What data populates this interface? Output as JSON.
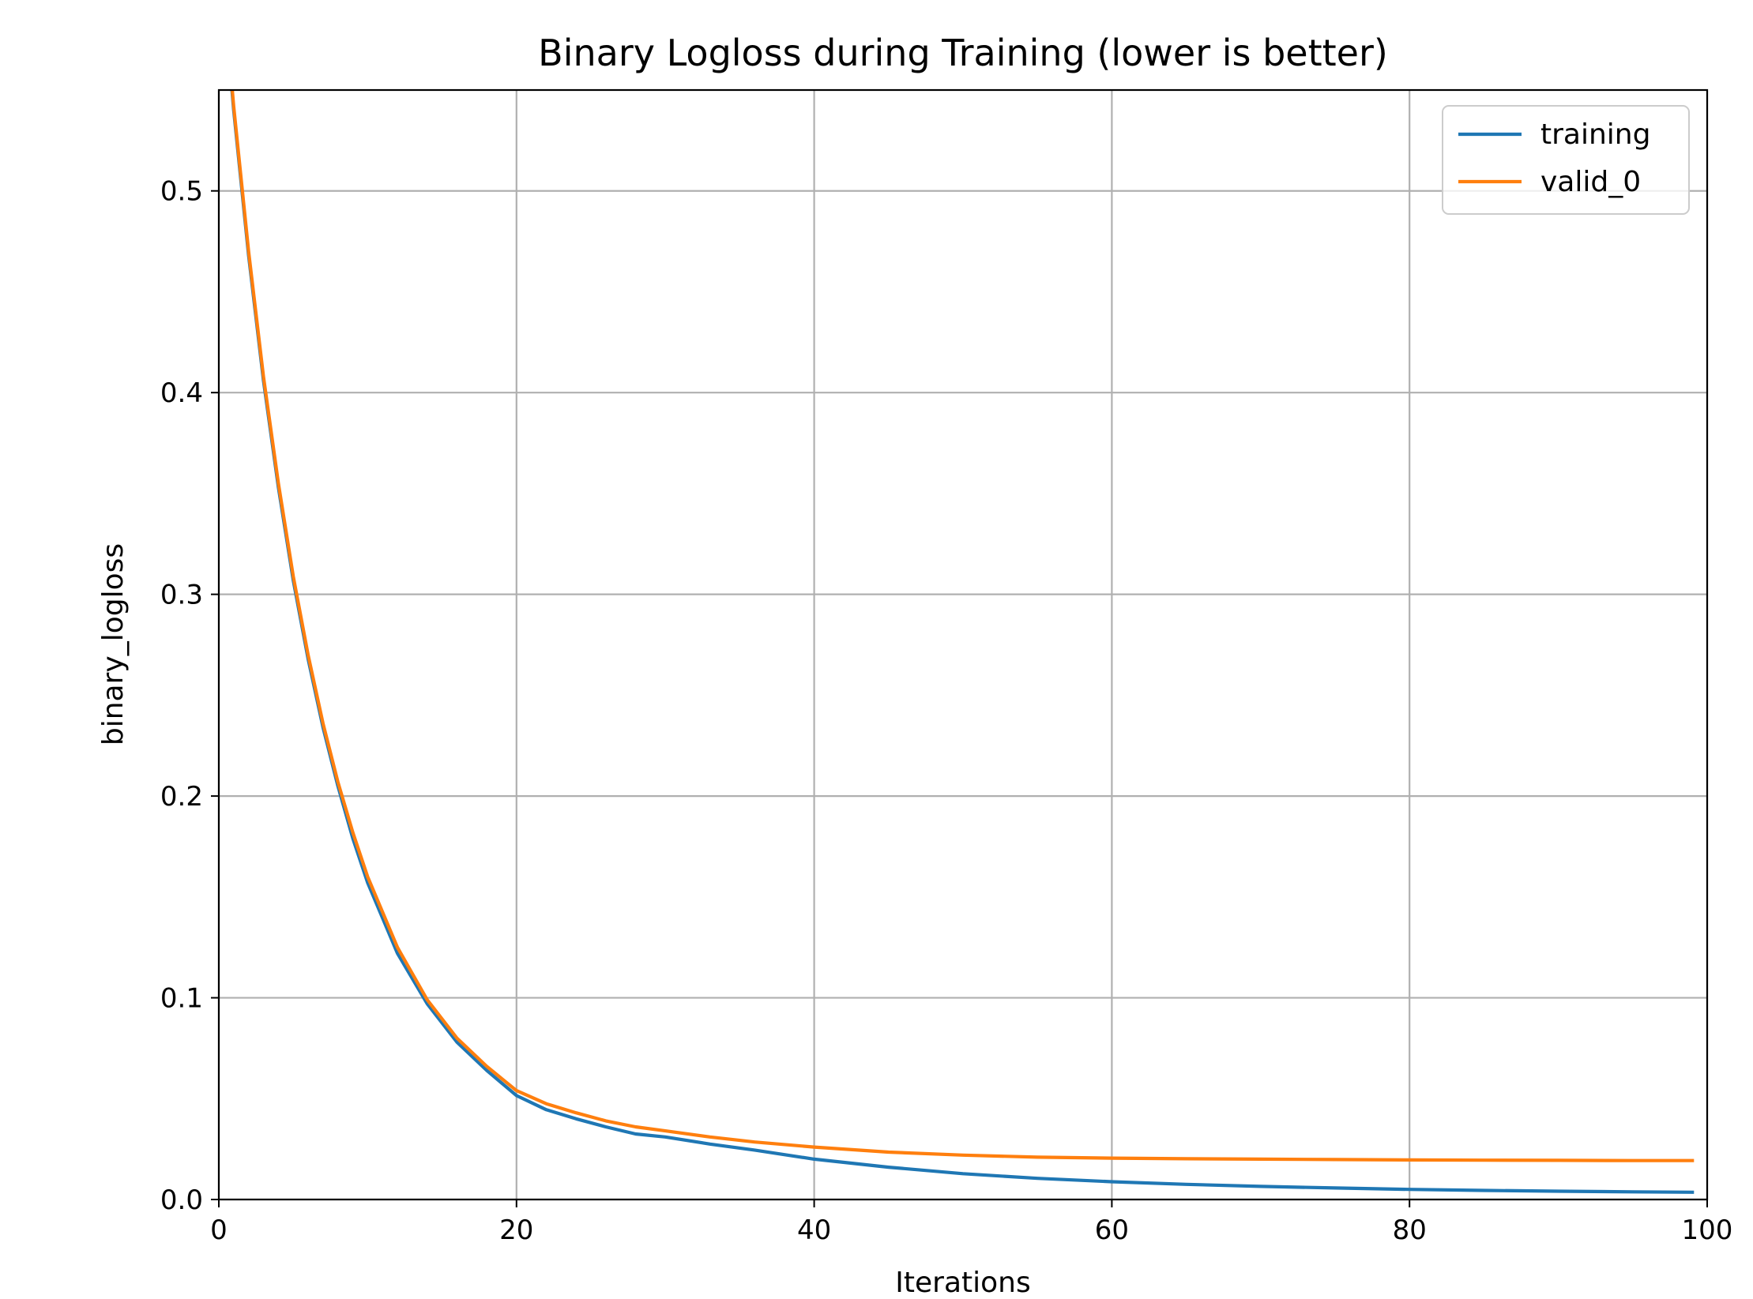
{
  "chart_data": {
    "type": "line",
    "title": "Binary Logloss during Training (lower is better)",
    "xlabel": "Iterations",
    "ylabel": "binary_logloss",
    "xlim": [
      0,
      100
    ],
    "ylim": [
      0,
      0.55
    ],
    "xticks": [
      0,
      20,
      40,
      60,
      80,
      100
    ],
    "xtick_labels": [
      "0",
      "20",
      "40",
      "60",
      "80",
      "100"
    ],
    "yticks": [
      0.0,
      0.1,
      0.2,
      0.3,
      0.4,
      0.5
    ],
    "ytick_labels": [
      "0.0",
      "0.1",
      "0.2",
      "0.3",
      "0.4",
      "0.5"
    ],
    "grid": true,
    "legend_position": "top-right",
    "x": [
      0,
      1,
      2,
      3,
      4,
      5,
      6,
      7,
      8,
      9,
      10,
      12,
      14,
      16,
      18,
      20,
      22,
      24,
      26,
      28,
      30,
      33,
      36,
      40,
      45,
      50,
      55,
      60,
      65,
      70,
      75,
      80,
      85,
      90,
      95,
      99
    ],
    "series": [
      {
        "name": "training",
        "color": "#1f77b4",
        "values": [
          0.625,
          0.54,
          0.468,
          0.406,
          0.353,
          0.307,
          0.268,
          0.234,
          0.205,
          0.179,
          0.157,
          0.122,
          0.097,
          0.078,
          0.064,
          0.0515,
          0.0445,
          0.04,
          0.036,
          0.0325,
          0.031,
          0.0275,
          0.0245,
          0.02,
          0.016,
          0.0128,
          0.0105,
          0.0088,
          0.0075,
          0.0065,
          0.0057,
          0.005,
          0.0045,
          0.0041,
          0.0038,
          0.0036
        ]
      },
      {
        "name": "valid_0",
        "color": "#ff7f0e",
        "values": [
          0.627,
          0.542,
          0.47,
          0.408,
          0.355,
          0.309,
          0.27,
          0.236,
          0.207,
          0.182,
          0.16,
          0.125,
          0.099,
          0.08,
          0.066,
          0.054,
          0.0475,
          0.043,
          0.039,
          0.036,
          0.034,
          0.031,
          0.0285,
          0.026,
          0.0235,
          0.022,
          0.021,
          0.0205,
          0.0202,
          0.02,
          0.0198,
          0.0196,
          0.0195,
          0.0194,
          0.0193,
          0.0193
        ]
      }
    ]
  }
}
